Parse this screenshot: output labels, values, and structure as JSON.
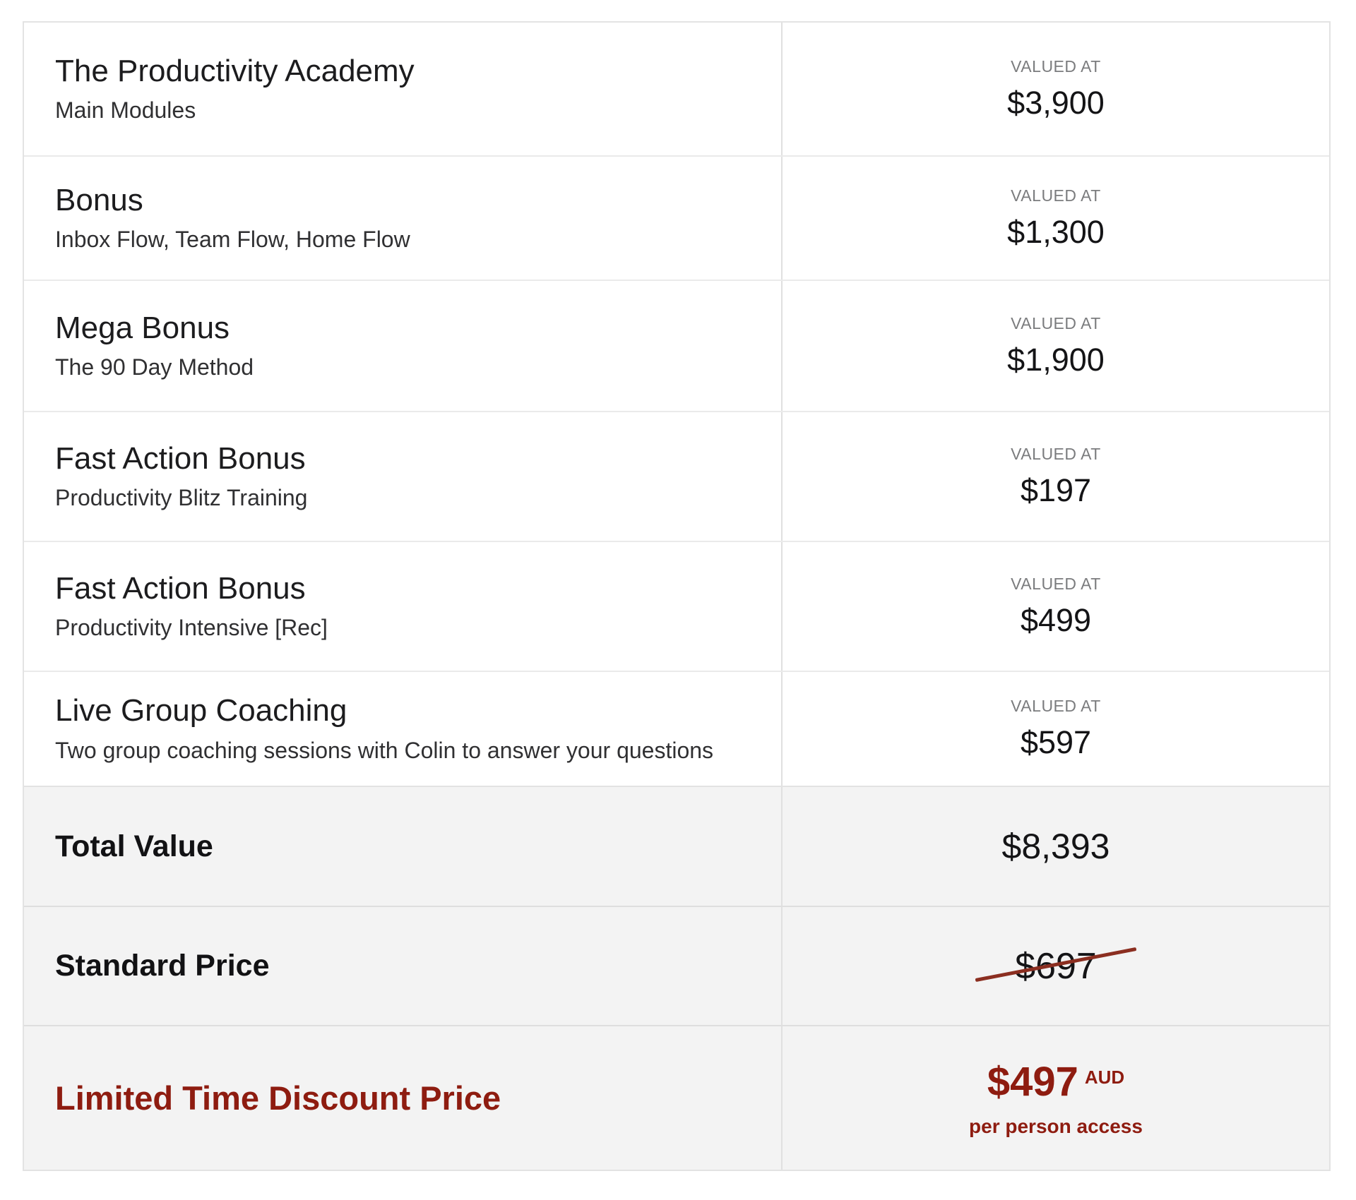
{
  "table": {
    "rows": [
      {
        "title": "The Productivity Academy",
        "subtitle": "Main Modules",
        "value_label": "VALUED AT",
        "value": "$3,900"
      },
      {
        "title": "Bonus",
        "subtitle": "Inbox Flow, Team Flow, Home Flow",
        "value_label": "VALUED AT",
        "value": "$1,300"
      },
      {
        "title": "Mega Bonus",
        "subtitle": "The 90 Day Method",
        "value_label": "VALUED AT",
        "value": "$1,900"
      },
      {
        "title": "Fast Action Bonus",
        "subtitle": "Productivity Blitz Training",
        "value_label": "VALUED AT",
        "value": "$197"
      },
      {
        "title": "Fast Action Bonus",
        "subtitle": "Productivity Intensive [Rec]",
        "value_label": "VALUED AT",
        "value": "$499"
      },
      {
        "title": "Live Group Coaching",
        "subtitle": "Two group coaching sessions with Colin to answer your questions",
        "value_label": "VALUED AT",
        "value": "$597"
      }
    ],
    "summary": {
      "total": {
        "label": "Total Value",
        "value": "$8,393"
      },
      "standard": {
        "label": "Standard Price",
        "value": "$697"
      },
      "discount": {
        "label": "Limited Time Discount Price",
        "value": "$497",
        "currency": "AUD",
        "note": "per person access"
      }
    },
    "colors": {
      "accent_red": "#8e1c10",
      "strike_red": "#8b2e20",
      "summary_row_gray": "#f3f3f3"
    }
  }
}
